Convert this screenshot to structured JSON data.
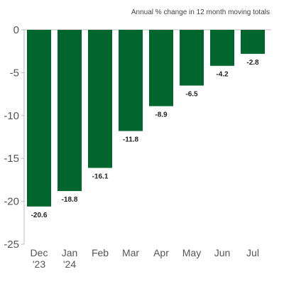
{
  "chart_data": {
    "type": "bar",
    "subtitle": "Annual % change in 12 month moving totals",
    "categories": [
      [
        "Dec",
        "'23"
      ],
      [
        "Jan",
        "'24"
      ],
      [
        "Feb"
      ],
      [
        "Mar"
      ],
      [
        "Apr"
      ],
      [
        "May"
      ],
      [
        "Jun"
      ],
      [
        "Jul"
      ]
    ],
    "values": [
      -20.6,
      -18.8,
      -16.1,
      -11.8,
      -8.9,
      -6.5,
      -4.2,
      -2.8
    ],
    "data_labels": [
      "-20.6",
      "-18.8",
      "-16.1",
      "-11.8",
      "-8.9",
      "-6.5",
      "-4.2",
      "-2.8"
    ],
    "yticks": [
      0,
      -5,
      -10,
      -15,
      -20,
      -25
    ],
    "ytick_labels": [
      "0",
      "-5",
      "-10",
      "-15",
      "-20",
      "-25"
    ],
    "ylim": [
      -25,
      0
    ],
    "grid": false,
    "bar_color": "#00662e"
  }
}
